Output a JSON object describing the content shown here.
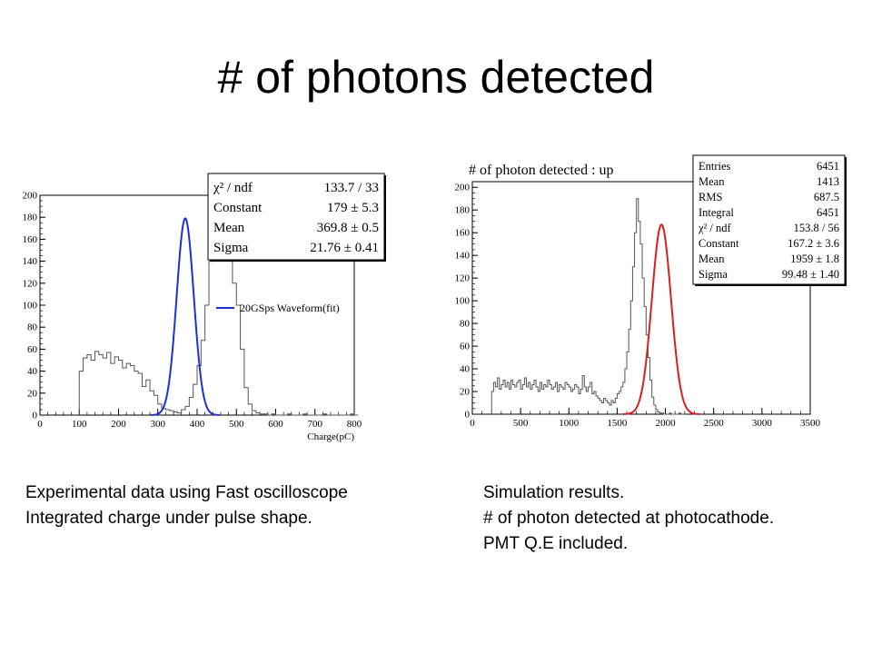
{
  "slide": {
    "title": "# of photons detected"
  },
  "chart_data": [
    {
      "type": "histogram",
      "title": "",
      "xlabel": "Charge(pC)",
      "ylabel": "",
      "xlim": [
        0,
        800
      ],
      "ylim": [
        0,
        200
      ],
      "xticks": [
        "0",
        "100",
        "200",
        "300",
        "400",
        "500",
        "600",
        "700",
        "800"
      ],
      "yticks": [
        "0",
        "20",
        "40",
        "60",
        "80",
        "100",
        "120",
        "140",
        "160",
        "180",
        "200"
      ],
      "legend": {
        "position": "center-right",
        "entries": [
          "20GSps Waveform(fit)"
        ]
      },
      "fit_color": "#1f2fd6",
      "stats": [
        {
          "label": "χ² / ndf",
          "value": "133.7 / 33"
        },
        {
          "label": "Constant",
          "value": "179 ± 5.3"
        },
        {
          "label": "Mean",
          "value": "369.8 ± 0.5"
        },
        {
          "label": "Sigma",
          "value": "21.76 ± 0.41"
        }
      ],
      "fit": {
        "constant": 179,
        "mean": 369.8,
        "sigma": 21.76
      },
      "histogram": {
        "bin_width": 10,
        "start": 100,
        "counts": [
          40,
          52,
          55,
          50,
          58,
          55,
          52,
          57,
          47,
          53,
          50,
          43,
          47,
          45,
          40,
          38,
          26,
          32,
          22,
          18,
          10,
          6,
          5,
          4,
          3,
          2,
          5,
          8,
          16,
          28,
          45,
          68,
          100,
          140,
          180,
          198,
          190,
          168,
          140,
          120,
          100,
          60,
          25,
          10,
          4,
          2,
          1,
          1,
          0,
          1,
          0,
          0,
          0,
          1,
          0,
          0,
          0,
          1,
          0,
          0,
          0,
          0,
          1,
          0,
          0,
          0,
          0,
          0,
          0,
          1,
          0
        ]
      }
    },
    {
      "type": "histogram",
      "title": "# of photon detected : up",
      "xlabel": "",
      "ylabel": "",
      "xlim": [
        0,
        3500
      ],
      "ylim": [
        0,
        205
      ],
      "xticks": [
        "0",
        "500",
        "1000",
        "1500",
        "2000",
        "2500",
        "3000",
        "3500"
      ],
      "yticks": [
        "0",
        "20",
        "40",
        "60",
        "80",
        "100",
        "120",
        "140",
        "160",
        "180",
        "200"
      ],
      "fit_color": "#d62020",
      "stats": [
        {
          "label": "Entries",
          "value": "6451"
        },
        {
          "label": "Mean",
          "value": "1413"
        },
        {
          "label": "RMS",
          "value": "687.5"
        },
        {
          "label": "Integral",
          "value": "6451"
        },
        {
          "label": "χ² / ndf",
          "value": "153.8 / 56"
        },
        {
          "label": "Constant",
          "value": "167.2 ± 3.6"
        },
        {
          "label": "Mean",
          "value": "1959 ± 1.8"
        },
        {
          "label": "Sigma",
          "value": "99.48 ± 1.40"
        }
      ],
      "fit": {
        "constant": 167.2,
        "mean": 1959,
        "sigma": 99.48
      },
      "histogram": {
        "bin_width": 20,
        "start": 200,
        "counts": [
          20,
          28,
          24,
          32,
          22,
          26,
          30,
          24,
          28,
          22,
          30,
          26,
          24,
          28,
          30,
          22,
          26,
          32,
          24,
          28,
          22,
          26,
          30,
          24,
          20,
          28,
          22,
          26,
          24,
          30,
          26,
          22,
          24,
          28,
          20,
          26,
          24,
          22,
          28,
          26,
          24,
          20,
          22,
          26,
          24,
          18,
          22,
          34,
          24,
          20,
          24,
          28,
          18,
          20,
          16,
          14,
          12,
          10,
          14,
          12,
          10,
          8,
          12,
          10,
          14,
          18,
          20,
          24,
          28,
          40,
          55,
          75,
          100,
          130,
          160,
          190,
          170,
          150,
          120,
          95,
          70,
          50,
          30,
          15,
          8,
          4,
          2,
          1,
          1,
          0,
          0,
          0,
          1,
          0,
          0,
          0,
          0,
          1,
          0,
          0
        ]
      }
    }
  ],
  "captions": {
    "left": [
      "Experimental data using Fast oscilloscope",
      "Integrated charge under pulse shape."
    ],
    "right": [
      "Simulation results.",
      "# of photon detected at photocathode.",
      "PMT Q.E included."
    ]
  }
}
